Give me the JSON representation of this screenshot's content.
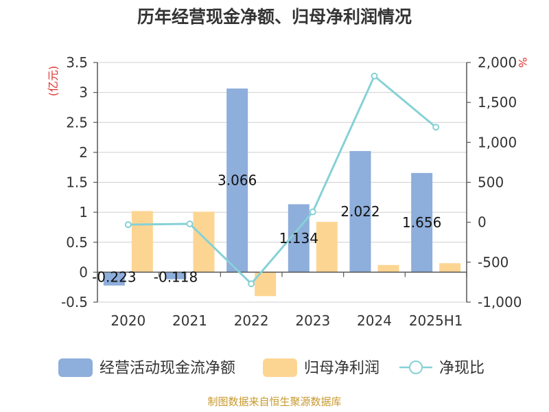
{
  "chart_data": {
    "type": "bar",
    "title": "历年经营现金净额、归母净利润情况",
    "categories": [
      "2020",
      "2021",
      "2022",
      "2023",
      "2024",
      "2025H1"
    ],
    "series": [
      {
        "name": "经营活动现金流净额",
        "type": "bar",
        "axis": "left",
        "values": [
          -0.223,
          -0.118,
          3.066,
          1.134,
          2.022,
          1.656
        ],
        "data_labels": [
          "-0.223",
          "-0.118",
          "3.066",
          "1.134",
          "2.022",
          "1.656"
        ],
        "color": "#8eaedb"
      },
      {
        "name": "归母净利润",
        "type": "bar",
        "axis": "left",
        "values": [
          1.02,
          1.01,
          -0.4,
          0.84,
          0.12,
          0.15
        ],
        "color": "#fdd593"
      },
      {
        "name": "净现比",
        "type": "line",
        "axis": "right",
        "values": [
          -30,
          -20,
          -770,
          130,
          1830,
          1190
        ],
        "color": "#86d1d6"
      }
    ],
    "left_axis": {
      "label": "(亿元)",
      "ylim": [
        -0.5,
        3.5
      ],
      "ticks": [
        "-0.5",
        "0",
        "0.5",
        "1",
        "1.5",
        "2",
        "2.5",
        "3",
        "3.5"
      ],
      "tick_values": [
        -0.5,
        0,
        0.5,
        1,
        1.5,
        2,
        2.5,
        3,
        3.5
      ]
    },
    "right_axis": {
      "label": "%",
      "ylim": [
        -1000,
        2000
      ],
      "ticks": [
        "-1,000",
        "-500",
        "0",
        "500",
        "1,000",
        "1,500",
        "2,000"
      ],
      "tick_values": [
        -1000,
        -500,
        0,
        500,
        1000,
        1500,
        2000
      ]
    },
    "grid": true,
    "legend_position": "bottom"
  },
  "footer": {
    "source": "制图数据来自恒生聚源数据库"
  },
  "colors": {
    "axis_label_accent": "#e0302a",
    "source_text": "#c8992e",
    "grid": "#cfcfcf",
    "axis": "#555555"
  }
}
